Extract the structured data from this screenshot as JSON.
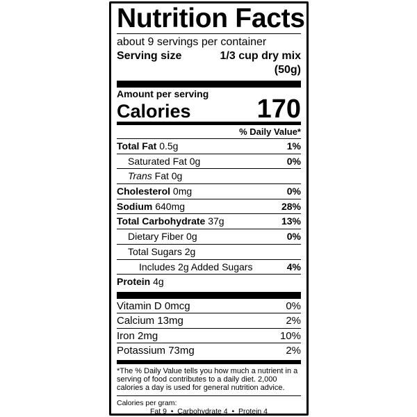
{
  "title": "Nutrition Facts",
  "servings_per_container": "about 9 servings per container",
  "serving_size": {
    "label": "Serving size",
    "value": "1/3 cup dry mix",
    "value2": "(50g)"
  },
  "amount_per_serving": "Amount per serving",
  "calories": {
    "label": "Calories",
    "value": "170"
  },
  "daily_value_header": "% Daily Value*",
  "nutrients": [
    {
      "name": "Total Fat",
      "amount": "0.5g",
      "dv": "1%"
    },
    {
      "name": "Saturated Fat",
      "amount": "0g",
      "dv": "0%"
    },
    {
      "name": "Trans",
      "suffix": "Fat 0g",
      "dv": ""
    },
    {
      "name": "Cholesterol",
      "amount": "0mg",
      "dv": "0%"
    },
    {
      "name": "Sodium",
      "amount": "640mg",
      "dv": "28%"
    },
    {
      "name": "Total Carbohydrate",
      "amount": "37g",
      "dv": "13%"
    },
    {
      "name": "Dietary Fiber",
      "amount": "0g",
      "dv": "0%"
    },
    {
      "name": "Total Sugars",
      "amount": "2g",
      "dv": ""
    },
    {
      "name": "Includes 2g Added Sugars",
      "dv": "4%"
    },
    {
      "name": "Protein",
      "amount": "4g",
      "dv": ""
    }
  ],
  "vitamins": [
    {
      "text": "Vitamin D 0mcg",
      "dv": "0%"
    },
    {
      "text": "Calcium 13mg",
      "dv": "2%"
    },
    {
      "text": "Iron 2mg",
      "dv": "10%"
    },
    {
      "text": "Potassium 73mg",
      "dv": "2%"
    }
  ],
  "footnote": "*The % Daily Value tells you how much a nutrient in a serving of food contributes to a daily diet. 2,000 calories a day is used for general nutrition advice.",
  "calories_per_gram": {
    "label": "Calories per gram:",
    "values": "Fat 9  •  Carbohydrate 4  •  Protein 4"
  }
}
